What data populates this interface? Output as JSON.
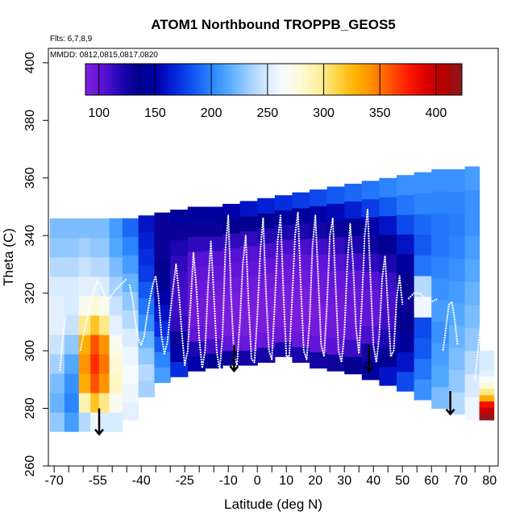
{
  "chart_data": {
    "type": "heatmap",
    "title": "ATOM1 Northbound TROPPB_GEOS5",
    "xlabel": "Latitude (deg N)",
    "ylabel": "Theta (C)",
    "annotation_flights": "Flts: 6,7,8,9",
    "annotation_dates": "MMDD: 0812,0815,0817,0820",
    "xlim": [
      -72,
      83
    ],
    "ylim": [
      260,
      405
    ],
    "x_ticks": [
      -70,
      -55,
      -40,
      -25,
      -10,
      0,
      10,
      20,
      30,
      40,
      50,
      60,
      70,
      80
    ],
    "x_minor_ticks": [
      -65,
      -60,
      -50,
      -45,
      -35,
      -30,
      -20,
      -15,
      -5,
      5,
      15,
      25,
      35,
      45,
      55,
      65,
      75
    ],
    "y_ticks": [
      260,
      280,
      300,
      320,
      340,
      360,
      380,
      400
    ],
    "colorbar": {
      "min": 88,
      "max": 423,
      "ticks": [
        100,
        150,
        200,
        250,
        300,
        350,
        400
      ],
      "colors": [
        "#7f1fdc",
        "#5a12d6",
        "#1c06b0",
        "#00008a",
        "#0000ac",
        "#0426dc",
        "#1155f0",
        "#2a84ff",
        "#55aaff",
        "#97cbff",
        "#d2e8ff",
        "#f6fbff",
        "#fffad8",
        "#fff0a0",
        "#ffd64a",
        "#ffb400",
        "#ff8c00",
        "#ff5500",
        "#ff1a00",
        "#dd0000",
        "#b30000",
        "#8b1a1a"
      ]
    },
    "field": {
      "lat": [
        -69,
        -64,
        -59,
        -56,
        -53,
        -49,
        -44,
        -38,
        -33,
        -27,
        -21,
        -15,
        -9,
        -3,
        3,
        9,
        15,
        21,
        27,
        33,
        39,
        45,
        51,
        57,
        63,
        69,
        74,
        79
      ],
      "theta_top": [
        346,
        346,
        346,
        346,
        346,
        346,
        346,
        347,
        348,
        349,
        350,
        350,
        351,
        352,
        353,
        354,
        355,
        356,
        357,
        358,
        359,
        360,
        361,
        362,
        363,
        363,
        364,
        300
      ],
      "theta_bottom": [
        272,
        272,
        272,
        272,
        272,
        272,
        276,
        284,
        289,
        291,
        293,
        294,
        295,
        295,
        296,
        298,
        296,
        294,
        293,
        292,
        290,
        288,
        286,
        283,
        280,
        278,
        276,
        276
      ],
      "values": [
        [
          230,
          220,
          225,
          235,
          245,
          255,
          255,
          250,
          240,
          230,
          225
        ],
        [
          210,
          200,
          205,
          215,
          230,
          245,
          250,
          250,
          240,
          230,
          225
        ],
        [
          240,
          290,
          330,
          340,
          330,
          300,
          270,
          255,
          245,
          235,
          225
        ],
        [
          260,
          320,
          360,
          370,
          360,
          320,
          280,
          255,
          240,
          230,
          225
        ],
        [
          250,
          300,
          340,
          350,
          340,
          300,
          270,
          250,
          240,
          230,
          225
        ],
        [
          250,
          270,
          285,
          280,
          270,
          255,
          245,
          235,
          225,
          215,
          210
        ],
        [
          255,
          260,
          265,
          260,
          250,
          240,
          230,
          220,
          210,
          200,
          190
        ],
        [
          235,
          240,
          230,
          220,
          205,
          195,
          185,
          175,
          170,
          165,
          160
        ],
        [
          210,
          200,
          185,
          170,
          160,
          150,
          140,
          135,
          130,
          130,
          130
        ],
        [
          170,
          150,
          130,
          115,
          110,
          110,
          112,
          115,
          120,
          130,
          145
        ],
        [
          150,
          120,
          100,
          95,
          95,
          98,
          100,
          105,
          115,
          130,
          145
        ],
        [
          140,
          110,
          95,
          92,
          92,
          95,
          100,
          105,
          115,
          130,
          145
        ],
        [
          130,
          100,
          92,
          90,
          92,
          95,
          100,
          105,
          115,
          135,
          150
        ],
        [
          125,
          98,
          92,
          90,
          92,
          95,
          100,
          105,
          115,
          135,
          160
        ],
        [
          125,
          98,
          92,
          90,
          92,
          95,
          100,
          108,
          118,
          140,
          165
        ],
        [
          122,
          98,
          92,
          90,
          92,
          95,
          100,
          108,
          120,
          145,
          170
        ],
        [
          122,
          98,
          92,
          90,
          92,
          95,
          100,
          108,
          120,
          145,
          175
        ],
        [
          125,
          100,
          94,
          92,
          94,
          97,
          102,
          110,
          125,
          150,
          180
        ],
        [
          128,
          104,
          96,
          94,
          96,
          99,
          106,
          114,
          130,
          155,
          185
        ],
        [
          135,
          112,
          100,
          96,
          98,
          102,
          110,
          120,
          140,
          165,
          190
        ],
        [
          145,
          125,
          108,
          100,
          100,
          105,
          115,
          128,
          150,
          175,
          195
        ],
        [
          160,
          140,
          120,
          110,
          108,
          112,
          122,
          140,
          160,
          185,
          200
        ],
        [
          180,
          160,
          145,
          135,
          130,
          135,
          145,
          160,
          180,
          195,
          205
        ],
        [
          205,
          195,
          185,
          180,
          260,
          240,
          195,
          185,
          190,
          200,
          205
        ],
        [
          225,
          215,
          210,
          205,
          210,
          205,
          200,
          195,
          195,
          200,
          205
        ],
        [
          240,
          230,
          225,
          220,
          215,
          210,
          205,
          200,
          198,
          200,
          205
        ],
        [
          260,
          250,
          240,
          230,
          225,
          220,
          215,
          210,
          205,
          205,
          210
        ],
        [
          420,
          400,
          380,
          330,
          300,
          280,
          265,
          255,
          250,
          250,
          250
        ]
      ]
    },
    "flight_track": {
      "color": "#ffffff",
      "segments": [
        {
          "lat": [
            -68,
            -67,
            -66
          ],
          "theta": [
            293,
            305,
            312
          ]
        },
        {
          "lat": [
            -61,
            -59,
            -57,
            -56,
            -55,
            -54,
            -53,
            -52,
            -51,
            -49,
            -47,
            -45
          ],
          "theta": [
            300,
            310,
            318,
            322,
            324,
            323,
            320,
            318,
            318,
            321,
            323,
            325
          ]
        },
        {
          "lat": [
            -44,
            -43,
            -42,
            -41,
            -40,
            -39,
            -38,
            -37,
            -36,
            -35,
            -34,
            -33,
            -32,
            -31,
            -30,
            -29,
            -28,
            -27,
            -26,
            -25,
            -24,
            -23,
            -22,
            -21,
            -20,
            -19,
            -18,
            -17,
            -16,
            -15,
            -14,
            -13,
            -12,
            -11,
            -10,
            -9,
            -8,
            -7,
            -6,
            -5,
            -4,
            -3,
            -2,
            -1,
            0,
            1,
            2,
            3,
            4,
            5,
            6,
            7,
            8,
            9,
            10,
            11,
            12,
            13,
            14,
            15,
            16,
            17,
            18,
            19,
            20,
            21,
            22,
            23,
            24,
            25,
            26,
            27,
            28,
            29,
            30,
            31,
            32,
            33,
            34,
            35,
            36,
            37,
            38,
            39,
            40,
            41,
            42,
            43,
            44,
            45,
            46,
            47,
            48,
            49,
            50
          ],
          "theta": [
            323,
            318,
            310,
            304,
            302,
            305,
            312,
            318,
            323,
            326,
            318,
            305,
            299,
            303,
            313,
            322,
            330,
            320,
            306,
            295,
            300,
            316,
            334,
            322,
            304,
            294,
            300,
            322,
            338,
            320,
            300,
            293,
            305,
            335,
            347,
            318,
            298,
            295,
            310,
            330,
            340,
            316,
            297,
            296,
            312,
            334,
            346,
            320,
            300,
            297,
            316,
            338,
            347,
            320,
            298,
            298,
            318,
            340,
            348,
            322,
            300,
            297,
            310,
            336,
            347,
            325,
            302,
            298,
            316,
            340,
            346,
            322,
            300,
            296,
            306,
            330,
            344,
            330,
            308,
            299,
            316,
            340,
            349,
            325,
            302,
            296,
            305,
            325,
            333,
            315,
            298,
            300,
            318,
            326,
            316
          ]
        },
        {
          "lat": [
            52,
            54,
            56,
            58,
            60,
            62
          ],
          "theta": [
            318,
            320,
            320,
            318,
            317,
            318
          ]
        },
        {
          "lat": [
            64,
            65,
            66,
            67,
            68,
            69
          ],
          "theta": [
            300,
            308,
            316,
            317,
            311,
            302
          ]
        },
        {
          "lat": [
            75,
            76,
            77,
            78
          ],
          "theta": [
            290,
            300,
            310,
            318
          ]
        }
      ]
    },
    "arrows": [
      {
        "lat": -54.5,
        "theta_from": 280,
        "theta_to": 271
      },
      {
        "lat": -8,
        "theta_from": 302,
        "theta_to": 293
      },
      {
        "lat": 38.5,
        "theta_from": 302,
        "theta_to": 293
      },
      {
        "lat": 66.5,
        "theta_from": 286,
        "theta_to": 278
      }
    ]
  }
}
